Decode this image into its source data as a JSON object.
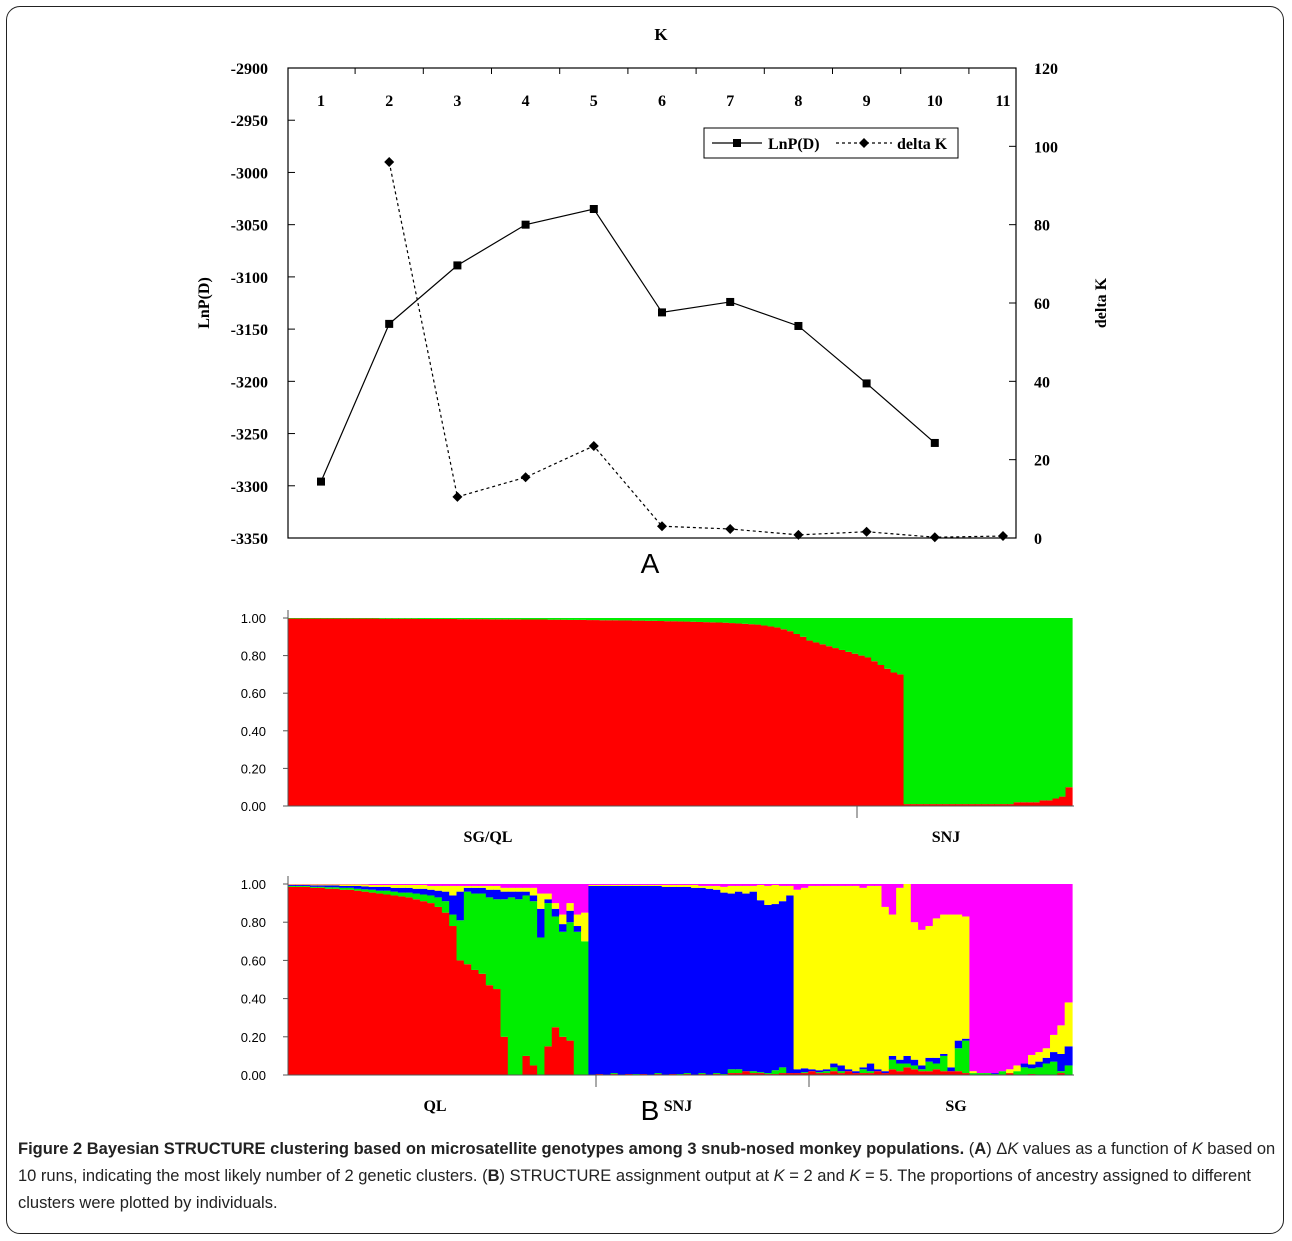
{
  "figure": {
    "panel_a_letter": "A",
    "panel_b_letter": "B"
  },
  "caption": {
    "title": "Figure 2 Bayesian STRUCTURE clustering based on microsatellite genotypes among 3 snub-nosed monkey populations.",
    "part_a_open": " (",
    "part_a_letter": "A",
    "part_a_close": ") ",
    "delta_symbol": "Δ",
    "k_italic_1": "K",
    "text_a1": " values as a function of ",
    "k_italic_2": "K",
    "text_a2": " based on 10 runs, indicating the most likely number of 2 genetic clusters. (",
    "part_b_letter": "B",
    "text_b1": ") STRUCTURE assignment output at ",
    "k_italic_3": "K",
    "text_b2": " = 2 and ",
    "k_italic_4": "K",
    "text_b3": " = 5. The proportions of ancestry assigned to different clusters were plotted by individuals."
  },
  "chart_data": [
    {
      "type": "line",
      "title": "",
      "xlabel": "K",
      "ylabel": "LnP(D)",
      "y2label": "delta K",
      "x": [
        1,
        2,
        3,
        4,
        5,
        6,
        7,
        8,
        9,
        10,
        11
      ],
      "x_tick_labels": [
        "1",
        "2",
        "3",
        "4",
        "5",
        "6",
        "7",
        "8",
        "9",
        "10",
        "11"
      ],
      "ylim": [
        -3350,
        -2900
      ],
      "y_ticks": [
        -2900,
        -2950,
        -3000,
        -3050,
        -3100,
        -3150,
        -3200,
        -3250,
        -3300,
        -3350
      ],
      "y2lim": [
        0,
        120
      ],
      "y2_ticks": [
        0,
        20,
        40,
        60,
        80,
        100,
        120
      ],
      "legend_position": "top-right",
      "series": [
        {
          "name": "LnP(D)",
          "axis": "left",
          "style": "solid",
          "marker": "square",
          "x": [
            1,
            2,
            3,
            4,
            5,
            6,
            7,
            8,
            9,
            10
          ],
          "values": [
            -3296,
            -3145,
            -3089,
            -3050,
            -3035,
            -3134,
            -3124,
            -3147,
            -3202,
            -3259
          ]
        },
        {
          "name": "delta K",
          "axis": "right",
          "style": "dashed",
          "marker": "diamond",
          "x": [
            2,
            3,
            4,
            5,
            6,
            7,
            8,
            9,
            10,
            11
          ],
          "values": [
            96,
            10.5,
            15.5,
            23.5,
            3,
            2.3,
            0.8,
            1.6,
            0.2,
            0.5
          ]
        }
      ]
    },
    {
      "type": "bar",
      "stacked": true,
      "title": "",
      "y_tick_labels": [
        "1.00",
        "0.80",
        "0.60",
        "0.40",
        "0.20",
        "0.00"
      ],
      "ylim": [
        0,
        1
      ],
      "group_labels": [
        "SG/QL",
        "SNJ"
      ],
      "group_sizes": [
        95,
        26
      ],
      "clusters": [
        {
          "color": "#ff0000"
        },
        {
          "color": "#00ee00"
        }
      ],
      "individual_cluster2_proportions": [
        0.003,
        0.003,
        0.003,
        0.003,
        0.003,
        0.003,
        0.003,
        0.003,
        0.003,
        0.003,
        0.003,
        0.003,
        0.003,
        0.003,
        0.004,
        0.004,
        0.004,
        0.004,
        0.004,
        0.004,
        0.005,
        0.005,
        0.005,
        0.005,
        0.005,
        0.005,
        0.006,
        0.006,
        0.006,
        0.006,
        0.006,
        0.007,
        0.007,
        0.007,
        0.007,
        0.007,
        0.008,
        0.008,
        0.008,
        0.008,
        0.009,
        0.009,
        0.009,
        0.01,
        0.01,
        0.01,
        0.011,
        0.011,
        0.012,
        0.012,
        0.012,
        0.013,
        0.013,
        0.014,
        0.014,
        0.015,
        0.015,
        0.016,
        0.017,
        0.017,
        0.018,
        0.019,
        0.02,
        0.021,
        0.022,
        0.023,
        0.024,
        0.025,
        0.027,
        0.029,
        0.031,
        0.033,
        0.035,
        0.04,
        0.045,
        0.05,
        0.06,
        0.07,
        0.085,
        0.1,
        0.12,
        0.13,
        0.14,
        0.15,
        0.16,
        0.17,
        0.18,
        0.19,
        0.2,
        0.21,
        0.23,
        0.25,
        0.27,
        0.29,
        0.3,
        0.99,
        0.99,
        0.99,
        0.99,
        0.99,
        0.99,
        0.99,
        0.99,
        0.99,
        0.99,
        0.99,
        0.99,
        0.99,
        0.99,
        0.99,
        0.99,
        0.99,
        0.98,
        0.98,
        0.98,
        0.98,
        0.97,
        0.97,
        0.96,
        0.95,
        0.9
      ]
    },
    {
      "type": "bar",
      "stacked": true,
      "title": "",
      "y_tick_labels": [
        "1.00",
        "0.80",
        "0.60",
        "0.40",
        "0.20",
        "0.00"
      ],
      "ylim": [
        0,
        1
      ],
      "group_labels": [
        "QL",
        "SNJ",
        "SG"
      ],
      "group_sizes": [
        41,
        28,
        38
      ],
      "clusters": [
        {
          "color": "#ff0000"
        },
        {
          "color": "#00ee00"
        },
        {
          "color": "#0000ff"
        },
        {
          "color": "#ffff00"
        },
        {
          "color": "#ff00ff"
        }
      ],
      "individuals": [
        [
          0.985,
          0.005,
          0.005,
          0.003,
          0.002
        ],
        [
          0.985,
          0.005,
          0.005,
          0.003,
          0.002
        ],
        [
          0.985,
          0.005,
          0.005,
          0.003,
          0.002
        ],
        [
          0.98,
          0.005,
          0.008,
          0.005,
          0.002
        ],
        [
          0.98,
          0.005,
          0.008,
          0.005,
          0.002
        ],
        [
          0.975,
          0.008,
          0.01,
          0.005,
          0.002
        ],
        [
          0.975,
          0.008,
          0.01,
          0.005,
          0.002
        ],
        [
          0.97,
          0.01,
          0.01,
          0.008,
          0.002
        ],
        [
          0.97,
          0.01,
          0.01,
          0.008,
          0.002
        ],
        [
          0.965,
          0.01,
          0.015,
          0.008,
          0.002
        ],
        [
          0.96,
          0.012,
          0.015,
          0.01,
          0.003
        ],
        [
          0.955,
          0.015,
          0.015,
          0.01,
          0.005
        ],
        [
          0.95,
          0.015,
          0.02,
          0.01,
          0.005
        ],
        [
          0.945,
          0.02,
          0.02,
          0.01,
          0.005
        ],
        [
          0.94,
          0.02,
          0.02,
          0.015,
          0.005
        ],
        [
          0.935,
          0.02,
          0.025,
          0.015,
          0.005
        ],
        [
          0.93,
          0.025,
          0.025,
          0.015,
          0.005
        ],
        [
          0.92,
          0.03,
          0.025,
          0.02,
          0.005
        ],
        [
          0.91,
          0.035,
          0.03,
          0.02,
          0.005
        ],
        [
          0.9,
          0.04,
          0.03,
          0.02,
          0.01
        ],
        [
          0.88,
          0.05,
          0.035,
          0.025,
          0.01
        ],
        [
          0.85,
          0.06,
          0.05,
          0.03,
          0.01
        ],
        [
          0.78,
          0.06,
          0.1,
          0.05,
          0.01
        ],
        [
          0.6,
          0.21,
          0.15,
          0.03,
          0.01
        ],
        [
          0.58,
          0.38,
          0.02,
          0.01,
          0.01
        ],
        [
          0.55,
          0.4,
          0.03,
          0.01,
          0.01
        ],
        [
          0.53,
          0.42,
          0.03,
          0.01,
          0.01
        ],
        [
          0.47,
          0.46,
          0.04,
          0.02,
          0.01
        ],
        [
          0.45,
          0.47,
          0.05,
          0.02,
          0.01
        ],
        [
          0.2,
          0.72,
          0.04,
          0.02,
          0.02
        ],
        [
          0.0,
          0.93,
          0.03,
          0.02,
          0.02
        ],
        [
          0.0,
          0.92,
          0.04,
          0.02,
          0.02
        ],
        [
          0.1,
          0.84,
          0.02,
          0.02,
          0.02
        ],
        [
          0.05,
          0.86,
          0.03,
          0.04,
          0.02
        ],
        [
          0.0,
          0.72,
          0.15,
          0.08,
          0.05
        ],
        [
          0.15,
          0.75,
          0.02,
          0.03,
          0.05
        ],
        [
          0.25,
          0.58,
          0.04,
          0.03,
          0.1
        ],
        [
          0.2,
          0.55,
          0.04,
          0.05,
          0.16
        ],
        [
          0.18,
          0.62,
          0.06,
          0.04,
          0.1
        ],
        [
          0.0,
          0.75,
          0.03,
          0.06,
          0.16
        ],
        [
          0.0,
          0.7,
          0.0,
          0.15,
          0.15
        ],
        [
          0.0,
          0.0,
          0.99,
          0.005,
          0.005
        ],
        [
          0.005,
          0.0,
          0.985,
          0.005,
          0.005
        ],
        [
          0.0,
          0.0,
          0.99,
          0.005,
          0.005
        ],
        [
          0.005,
          0.005,
          0.98,
          0.005,
          0.005
        ],
        [
          0.0,
          0.0,
          0.99,
          0.005,
          0.005
        ],
        [
          0.005,
          0.0,
          0.985,
          0.005,
          0.005
        ],
        [
          0.0,
          0.005,
          0.985,
          0.005,
          0.005
        ],
        [
          0.005,
          0.0,
          0.985,
          0.005,
          0.005
        ],
        [
          0.0,
          0.0,
          0.99,
          0.005,
          0.005
        ],
        [
          0.005,
          0.005,
          0.98,
          0.005,
          0.005
        ],
        [
          0.0,
          0.0,
          0.985,
          0.01,
          0.005
        ],
        [
          0.005,
          0.0,
          0.98,
          0.01,
          0.005
        ],
        [
          0.0,
          0.005,
          0.98,
          0.01,
          0.005
        ],
        [
          0.005,
          0.005,
          0.975,
          0.01,
          0.005
        ],
        [
          0.0,
          0.0,
          0.98,
          0.015,
          0.005
        ],
        [
          0.005,
          0.005,
          0.97,
          0.01,
          0.01
        ],
        [
          0.0,
          0.0,
          0.975,
          0.015,
          0.01
        ],
        [
          0.005,
          0.005,
          0.96,
          0.02,
          0.01
        ],
        [
          0.0,
          0.005,
          0.95,
          0.03,
          0.015
        ],
        [
          0.01,
          0.02,
          0.92,
          0.04,
          0.01
        ],
        [
          0.01,
          0.02,
          0.93,
          0.03,
          0.01
        ],
        [
          0.02,
          0.0,
          0.93,
          0.04,
          0.01
        ],
        [
          0.01,
          0.01,
          0.94,
          0.03,
          0.01
        ],
        [
          0.01,
          0.005,
          0.9,
          0.08,
          0.005
        ],
        [
          0.005,
          0.005,
          0.88,
          0.1,
          0.01
        ],
        [
          0.005,
          0.02,
          0.87,
          0.1,
          0.005
        ],
        [
          0.01,
          0.03,
          0.87,
          0.08,
          0.01
        ],
        [
          0.01,
          0.0,
          0.93,
          0.05,
          0.01
        ],
        [
          0.01,
          0.0,
          0.02,
          0.94,
          0.03
        ],
        [
          0.01,
          0.005,
          0.02,
          0.945,
          0.02
        ],
        [
          0.02,
          0.0,
          0.01,
          0.96,
          0.01
        ],
        [
          0.01,
          0.005,
          0.01,
          0.965,
          0.01
        ],
        [
          0.01,
          0.01,
          0.01,
          0.96,
          0.01
        ],
        [
          0.02,
          0.02,
          0.02,
          0.93,
          0.01
        ],
        [
          0.01,
          0.01,
          0.03,
          0.94,
          0.01
        ],
        [
          0.02,
          0.0,
          0.01,
          0.96,
          0.01
        ],
        [
          0.01,
          0.0,
          0.01,
          0.97,
          0.01
        ],
        [
          0.01,
          0.02,
          0.01,
          0.94,
          0.02
        ],
        [
          0.01,
          0.01,
          0.04,
          0.93,
          0.01
        ],
        [
          0.02,
          0.0,
          0.01,
          0.96,
          0.01
        ],
        [
          0.01,
          0.0,
          0.01,
          0.86,
          0.12
        ],
        [
          0.03,
          0.05,
          0.02,
          0.74,
          0.16
        ],
        [
          0.02,
          0.04,
          0.02,
          0.9,
          0.02
        ],
        [
          0.04,
          0.02,
          0.04,
          0.9,
          0.0
        ],
        [
          0.03,
          0.02,
          0.03,
          0.72,
          0.2
        ],
        [
          0.02,
          0.01,
          0.02,
          0.71,
          0.24
        ],
        [
          0.02,
          0.05,
          0.02,
          0.69,
          0.22
        ],
        [
          0.03,
          0.03,
          0.03,
          0.73,
          0.18
        ],
        [
          0.02,
          0.08,
          0.01,
          0.73,
          0.16
        ],
        [
          0.02,
          0.0,
          0.02,
          0.8,
          0.16
        ],
        [
          0.02,
          0.12,
          0.04,
          0.66,
          0.16
        ],
        [
          0.01,
          0.17,
          0.01,
          0.64,
          0.17
        ],
        [
          0.0,
          0.01,
          0.0,
          0.01,
          0.98
        ],
        [
          0.0,
          0.01,
          0.0,
          0.0,
          0.99
        ],
        [
          0.0,
          0.01,
          0.0,
          0.0,
          0.99
        ],
        [
          0.0,
          0.005,
          0.005,
          0.0,
          0.99
        ],
        [
          0.0,
          0.02,
          0.0,
          0.0,
          0.98
        ],
        [
          0.01,
          0.0,
          0.0,
          0.02,
          0.97
        ],
        [
          0.0,
          0.02,
          0.0,
          0.03,
          0.95
        ],
        [
          0.0,
          0.04,
          0.02,
          0.0,
          0.94
        ],
        [
          0.005,
          0.03,
          0.02,
          0.05,
          0.895
        ],
        [
          0.0,
          0.04,
          0.03,
          0.05,
          0.88
        ],
        [
          0.0,
          0.06,
          0.03,
          0.05,
          0.86
        ],
        [
          0.0,
          0.07,
          0.05,
          0.09,
          0.79
        ],
        [
          0.01,
          0.01,
          0.09,
          0.15,
          0.74
        ],
        [
          0.0,
          0.05,
          0.1,
          0.23,
          0.62
        ]
      ]
    }
  ]
}
